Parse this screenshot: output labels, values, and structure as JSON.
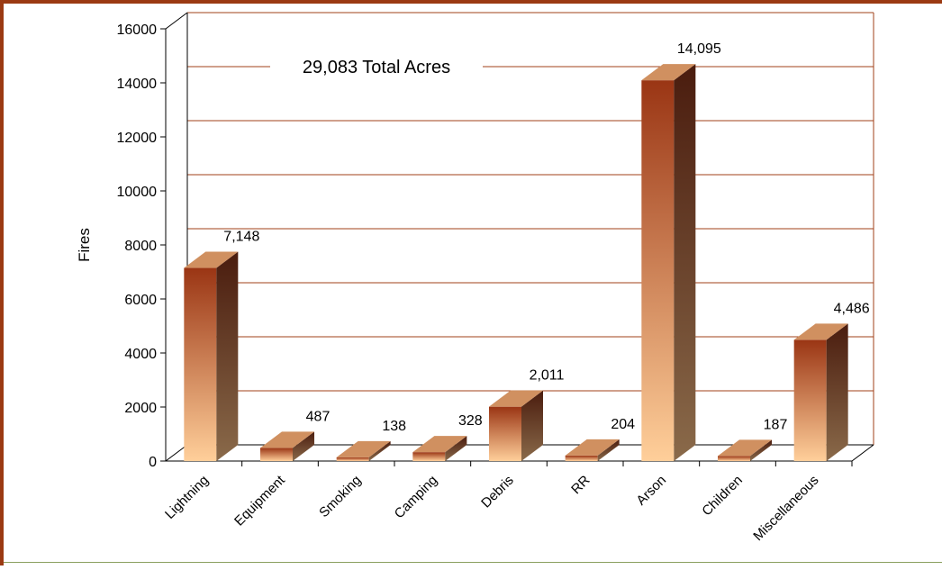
{
  "chart_data": {
    "type": "bar",
    "title": "",
    "annotation": "29,083 Total Acres",
    "xlabel": "",
    "ylabel": "Fires",
    "ylim": [
      0,
      16000
    ],
    "yticks": [
      "0",
      "2000",
      "4000",
      "6000",
      "8000",
      "10000",
      "12000",
      "14000",
      "16000"
    ],
    "categories": [
      "Lightning",
      "Equipment",
      "Smoking",
      "Camping",
      "Debris",
      "RR",
      "Arson",
      "Children",
      "Miscellaneous"
    ],
    "values": [
      7148,
      487,
      138,
      328,
      2011,
      204,
      14095,
      187,
      4486
    ],
    "value_labels": [
      "7,148",
      "487",
      "138",
      "328",
      "2,011",
      "204",
      "14,095",
      "187",
      "4,486"
    ],
    "grid": true,
    "legend": "none"
  },
  "colors": {
    "frame": "#9b3a13",
    "grid": "#a0401a",
    "bar_top": "#9a3514",
    "bar_bottom": "#ffcf9a",
    "bar_side_top": "#4a1c0e",
    "bar_side_bottom": "#8a6a4a",
    "bar_cap": "#d09060",
    "bottom_rule": "#8aa060"
  }
}
